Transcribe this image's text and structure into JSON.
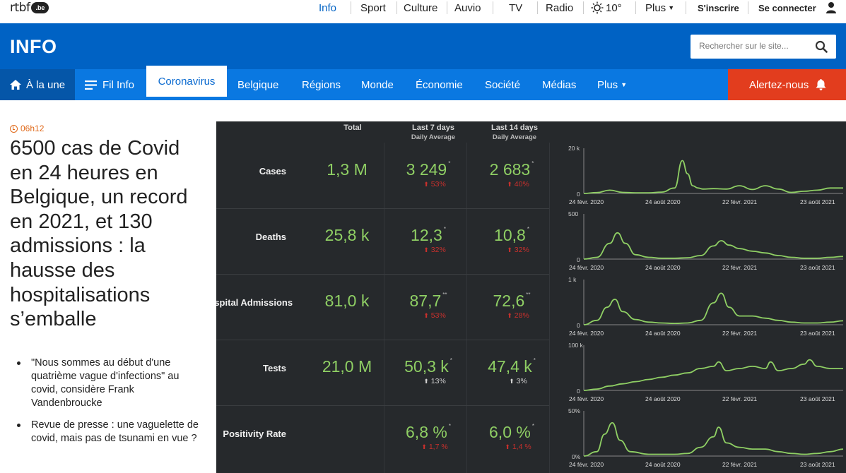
{
  "topbar": {
    "logo_text": "rtbf",
    "logo_badge": ".be",
    "nav": [
      "Info",
      "Sport",
      "Culture",
      "Auvio",
      "TV",
      "Radio"
    ],
    "weather": "10°",
    "more": "Plus",
    "signup": "S'inscrire",
    "login": "Se connecter",
    "active_color": "#0062c4"
  },
  "header": {
    "title": "INFO",
    "search_placeholder": "Rechercher sur le site...",
    "bg_color": "#0062c4"
  },
  "subnav": {
    "items": [
      "À la une",
      "Fil Info",
      "Coronavirus",
      "Belgique",
      "Régions",
      "Monde",
      "Économie",
      "Société",
      "Médias",
      "Plus"
    ],
    "alert": "Alertez-nous",
    "alert_color": "#e23d1e"
  },
  "article": {
    "time": "06h12",
    "headline": "6500 cas de Covid en 24 heures en Belgique, un record en 2021, et 130 admissions : la hausse des hospitalisations s’emballe",
    "related": [
      "\"Nous sommes au début d'une quatrième vague d'infections\" au covid, considère Frank Vandenbroucke",
      "Revue de presse : une vaguelette de covid, mais pas de tsunami en vue ?"
    ]
  },
  "dashboard": {
    "col_total": "Total",
    "col_7": "Last 7 days",
    "col_14": "Last 14 days",
    "col_sub": "Daily Average",
    "rows": [
      {
        "label": "Cases",
        "total": "1,3 M",
        "avg7": "3 249",
        "avg7_mark": "*",
        "chg7": "53%",
        "avg14": "2 683",
        "avg14_mark": "*",
        "chg14": "40%",
        "chg_color": "red",
        "ymax": "20 k",
        "ymin": "0",
        "xlabels": [
          "24 févr. 2020",
          "24 août 2020",
          "22 févr. 2021",
          "23 août 2021"
        ]
      },
      {
        "label": "Deaths",
        "total": "25,8 k",
        "avg7": "12,3",
        "avg7_mark": "*",
        "chg7": "32%",
        "avg14": "10,8",
        "avg14_mark": "*",
        "chg14": "32%",
        "chg_color": "red",
        "ymax": "500",
        "ymin": "0",
        "xlabels": [
          "24 févr. 2020",
          "24 août 2020",
          "22 févr. 2021",
          "23 août 2021"
        ]
      },
      {
        "label": "Hospital Admissions",
        "total": "81,0 k",
        "avg7": "87,7",
        "avg7_mark": "**",
        "chg7": "53%",
        "avg14": "72,6",
        "avg14_mark": "**",
        "chg14": "28%",
        "chg_color": "red",
        "ymax": "1 k",
        "ymin": "0",
        "xlabels": [
          "24 févr. 2020",
          "24 août 2020",
          "22 févr. 2021",
          "23 août 2021"
        ]
      },
      {
        "label": "Tests",
        "total": "21,0 M",
        "avg7": "50,3 k",
        "avg7_mark": "*",
        "chg7": "13%",
        "avg14": "47,4 k",
        "avg14_mark": "*",
        "chg14": "3%",
        "chg_color": "white",
        "ymax": "100 k",
        "ymin": "0",
        "xlabels": [
          "24 févr. 2020",
          "24 août 2020",
          "22 févr. 2021",
          "23 août 2021"
        ]
      },
      {
        "label": "Positivity Rate",
        "total": "",
        "avg7": "6,8 %",
        "avg7_mark": "*",
        "chg7": "1,7 %",
        "avg14": "6,0 %",
        "avg14_mark": "*",
        "chg14": "1,4 %",
        "chg_color": "red",
        "ymax": "50%",
        "ymin": "0%",
        "xlabels": [
          "24 févr. 2020",
          "24 août 2020",
          "22 févr. 2021",
          "23 août 2021"
        ]
      }
    ],
    "bg_color": "#26292c",
    "value_color": "#8fcf64",
    "line_color": "#8fcf64"
  },
  "chart_data": [
    {
      "type": "line",
      "title": "",
      "ylim": [
        0,
        20000
      ],
      "x": [
        0,
        0.05,
        0.1,
        0.15,
        0.2,
        0.25,
        0.3,
        0.35,
        0.38,
        0.4,
        0.42,
        0.44,
        0.46,
        0.5,
        0.55,
        0.6,
        0.65,
        0.7,
        0.75,
        0.8,
        0.85,
        0.9,
        0.95,
        1.0
      ],
      "series": [
        {
          "values": [
            0,
            400,
            1500,
            500,
            300,
            300,
            600,
            2500,
            15000,
            9000,
            3500,
            2500,
            2000,
            2200,
            2000,
            3500,
            1800,
            3500,
            2000,
            500,
            1000,
            1500,
            2500,
            2500
          ]
        }
      ]
    },
    {
      "type": "line",
      "title": "",
      "ylim": [
        0,
        500
      ],
      "x": [
        0,
        0.05,
        0.1,
        0.13,
        0.16,
        0.2,
        0.25,
        0.3,
        0.35,
        0.4,
        0.45,
        0.5,
        0.53,
        0.56,
        0.6,
        0.65,
        0.7,
        0.75,
        0.8,
        0.85,
        0.9,
        0.95,
        1.0
      ],
      "series": [
        {
          "values": [
            0,
            20,
            180,
            300,
            180,
            50,
            20,
            10,
            10,
            15,
            40,
            150,
            210,
            160,
            120,
            90,
            70,
            40,
            20,
            10,
            10,
            20,
            30
          ]
        }
      ]
    },
    {
      "type": "line",
      "title": "",
      "ylim": [
        0,
        1000
      ],
      "x": [
        0,
        0.05,
        0.09,
        0.12,
        0.15,
        0.2,
        0.25,
        0.3,
        0.35,
        0.4,
        0.45,
        0.5,
        0.53,
        0.56,
        0.6,
        0.65,
        0.7,
        0.75,
        0.8,
        0.85,
        0.9,
        0.95,
        1.0
      ],
      "series": [
        {
          "values": [
            0,
            100,
            400,
            580,
            300,
            120,
            60,
            40,
            30,
            40,
            100,
            500,
            720,
            400,
            200,
            200,
            150,
            100,
            60,
            40,
            40,
            60,
            90
          ]
        }
      ]
    },
    {
      "type": "line",
      "title": "",
      "ylim": [
        0,
        100000
      ],
      "x": [
        0,
        0.05,
        0.1,
        0.15,
        0.2,
        0.25,
        0.3,
        0.35,
        0.4,
        0.45,
        0.5,
        0.52,
        0.55,
        0.6,
        0.65,
        0.7,
        0.72,
        0.75,
        0.8,
        0.85,
        0.87,
        0.9,
        0.95,
        1.0
      ],
      "series": [
        {
          "values": [
            0,
            3000,
            10000,
            15000,
            20000,
            25000,
            30000,
            35000,
            40000,
            50000,
            55000,
            65000,
            45000,
            50000,
            55000,
            50000,
            65000,
            45000,
            50000,
            60000,
            70000,
            55000,
            50000,
            50000
          ]
        }
      ]
    },
    {
      "type": "line",
      "title": "",
      "ylim": [
        0,
        50
      ],
      "x": [
        0,
        0.05,
        0.08,
        0.11,
        0.14,
        0.18,
        0.25,
        0.3,
        0.35,
        0.4,
        0.45,
        0.5,
        0.52,
        0.55,
        0.6,
        0.65,
        0.7,
        0.75,
        0.8,
        0.85,
        0.9,
        0.95,
        1.0
      ],
      "series": [
        {
          "values": [
            0,
            5,
            25,
            38,
            18,
            5,
            2,
            2,
            2,
            3,
            10,
            22,
            33,
            15,
            10,
            8,
            8,
            5,
            3,
            2,
            3,
            5,
            8
          ]
        }
      ]
    }
  ]
}
